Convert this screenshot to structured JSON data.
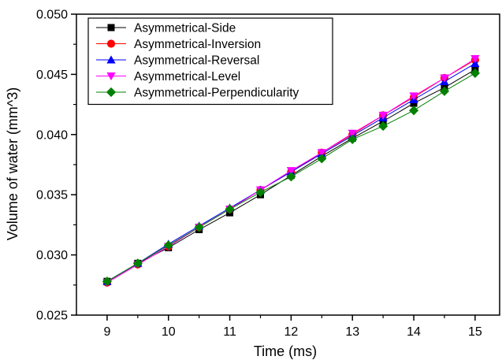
{
  "chart_data": {
    "type": "line",
    "title": "",
    "xlabel": "Time (ms)",
    "ylabel": "Volume of water (mm^3)",
    "xlim": [
      8.5,
      15.4
    ],
    "ylim": [
      0.025,
      0.05
    ],
    "xticks": [
      9,
      10,
      11,
      12,
      13,
      14,
      15
    ],
    "xtick_labels": [
      "9",
      "10",
      "11",
      "12",
      "13",
      "14",
      "15"
    ],
    "yticks": [
      0.025,
      0.03,
      0.035,
      0.04,
      0.045,
      0.05
    ],
    "ytick_labels": [
      "0.025",
      "0.030",
      "0.035",
      "0.040",
      "0.045",
      "0.050"
    ],
    "grid": false,
    "legend_position": "top-left",
    "x": [
      9,
      9.5,
      10,
      10.5,
      11,
      11.5,
      12,
      12.5,
      13,
      13.5,
      14,
      14.5,
      15
    ],
    "series": [
      {
        "name": "Asymmetrical-Side",
        "color": "#000000",
        "marker": "square",
        "values": [
          0.0278,
          0.0293,
          0.0306,
          0.0321,
          0.0335,
          0.035,
          0.0366,
          0.0382,
          0.0397,
          0.0411,
          0.0426,
          0.0439,
          0.0454
        ]
      },
      {
        "name": "Asymmetrical-Inversion",
        "color": "#ff0000",
        "marker": "circle",
        "values": [
          0.0277,
          0.0292,
          0.0307,
          0.0323,
          0.0338,
          0.0354,
          0.0369,
          0.0385,
          0.04,
          0.0416,
          0.0431,
          0.0447,
          0.0462
        ]
      },
      {
        "name": "Asymmetrical-Reversal",
        "color": "#0000ff",
        "marker": "triangle-up",
        "values": [
          0.0278,
          0.0293,
          0.0309,
          0.0324,
          0.0339,
          0.0354,
          0.0369,
          0.0384,
          0.0399,
          0.0414,
          0.0429,
          0.0444,
          0.0459
        ]
      },
      {
        "name": "Asymmetrical-Level",
        "color": "#ff00ff",
        "marker": "triangle-down",
        "values": [
          0.0277,
          0.0292,
          0.0307,
          0.0323,
          0.0338,
          0.0354,
          0.037,
          0.0385,
          0.0401,
          0.0416,
          0.0432,
          0.0447,
          0.0463
        ]
      },
      {
        "name": "Asymmetrical-Perpendicularity",
        "color": "#008000",
        "marker": "diamond",
        "values": [
          0.0278,
          0.0293,
          0.0308,
          0.0323,
          0.0338,
          0.0352,
          0.0365,
          0.038,
          0.0396,
          0.0407,
          0.042,
          0.0436,
          0.0451
        ]
      }
    ]
  }
}
